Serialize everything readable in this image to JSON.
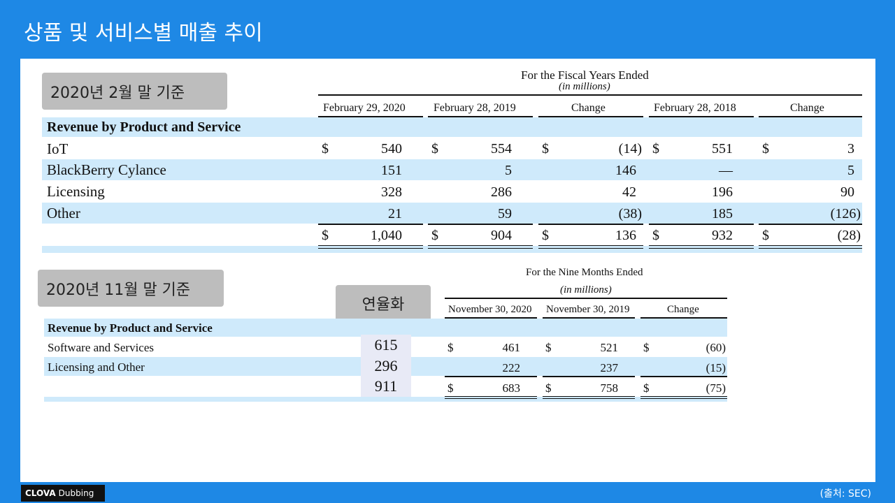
{
  "slide_title": "상품 및 서비스별 매출 추이",
  "label_feb": "2020년 2월 말 기준",
  "label_nov": "2020년 11월 말 기준",
  "annualized_label": "연율화",
  "table1": {
    "header_top": "For the Fiscal Years Ended",
    "header_sub": "(in millions)",
    "columns": [
      "February 29, 2020",
      "February 28, 2019",
      "Change",
      "February 28, 2018",
      "Change"
    ],
    "section": "Revenue by Product and Service",
    "dollar": "$",
    "rows": [
      {
        "name": "IoT",
        "v": [
          "540",
          "554",
          "(14)",
          "551",
          "3"
        ]
      },
      {
        "name": "BlackBerry Cylance",
        "v": [
          "151",
          "5",
          "146",
          "—",
          "5"
        ]
      },
      {
        "name": "Licensing",
        "v": [
          "328",
          "286",
          "42",
          "196",
          "90"
        ]
      },
      {
        "name": "Other",
        "v": [
          "21",
          "59",
          "(38)",
          "185",
          "(126)"
        ]
      }
    ],
    "total": [
      "1,040",
      "904",
      "136",
      "932",
      "(28)"
    ]
  },
  "table2": {
    "header_top": "For the Nine Months Ended",
    "header_sub": "(in millions)",
    "columns": [
      "November 30, 2020",
      "November 30, 2019",
      "Change"
    ],
    "section": "Revenue by Product and Service",
    "dollar": "$",
    "rows": [
      {
        "name": "Software and Services",
        "annual": "615",
        "v": [
          "461",
          "521",
          "(60)"
        ]
      },
      {
        "name": "Licensing and Other",
        "annual": "296",
        "v": [
          "222",
          "237",
          "(15)"
        ]
      }
    ],
    "total_annual": "911",
    "total": [
      "683",
      "758",
      "(75)"
    ]
  },
  "footer": {
    "logo_bold": "CLOVA",
    "logo_rest": "Dubbing",
    "source": "(출처: SEC)"
  }
}
